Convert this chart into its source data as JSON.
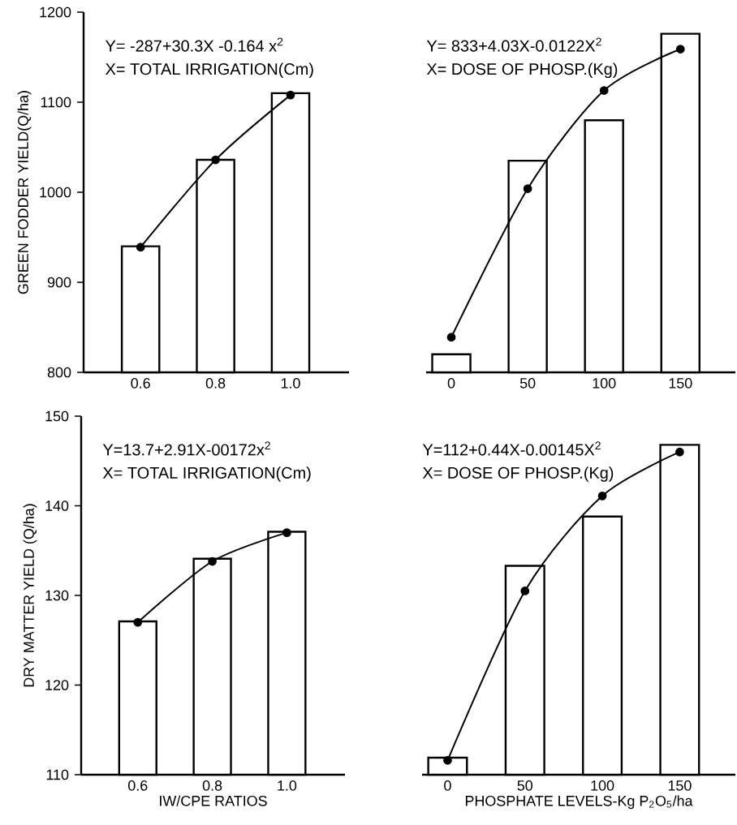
{
  "chart_data": [
    {
      "type": "bar",
      "ylabel": "GREEN FODDER YIELD(Q/ha)",
      "categories": [
        "0.6",
        "0.8",
        "1.0"
      ],
      "ylim": [
        800,
        1200
      ],
      "yticks": [
        800,
        900,
        1000,
        1100,
        1200
      ],
      "marker": "circle",
      "annotations": [
        "Y= -287+30.3X -0.164 x$^{2}$",
        "X= TOTAL IRRIGATION(Cm)"
      ],
      "series": [
        {
          "color": "#ffffff",
          "values": [
            940,
            1036,
            1110
          ]
        },
        {
          "type": "line",
          "color": "#000000",
          "values": [
            939,
            1036,
            1108
          ]
        }
      ]
    },
    {
      "type": "bar",
      "categories": [
        "0",
        "50",
        "100",
        "150"
      ],
      "ylim": [
        800,
        1200
      ],
      "tick_labels": "x",
      "marker": "circle",
      "annotations": [
        "Y= 833+4.03X-0.0122X$^{2}$",
        "X= DOSE OF PHOSP.(Kg)"
      ],
      "series": [
        {
          "color": "#ffffff",
          "values": [
            820,
            1035,
            1080,
            1176
          ]
        },
        {
          "type": "line",
          "color": "#000000",
          "values": [
            839,
            1004,
            1113,
            1159
          ]
        }
      ]
    },
    {
      "type": "bar",
      "ylabel": "DRY MATTER YIELD (Q/ha)",
      "xlabel": "IW/CPE RATIOS",
      "categories": [
        "0.6",
        "0.8",
        "1.0"
      ],
      "ylim": [
        110,
        150
      ],
      "yticks": [
        110,
        120,
        130,
        140,
        150
      ],
      "marker": "circle",
      "annotations": [
        "Y=13.7+2.91X-00172x$^{2}$",
        "X= TOTAL IRRIGATION(Cm)"
      ],
      "series": [
        {
          "color": "#ffffff",
          "values": [
            127.1,
            134.1,
            137.1
          ]
        },
        {
          "type": "line",
          "color": "#000000",
          "values": [
            127,
            133.8,
            137
          ]
        }
      ]
    },
    {
      "type": "bar",
      "xlabel": "PHOSPHATE LEVELS-Kg P$_{2}$O$_{5}$/ha",
      "categories": [
        "0",
        "50",
        "100",
        "150"
      ],
      "ylim": [
        110,
        150
      ],
      "tick_labels": "x",
      "marker": "circle",
      "annotations": [
        "Y=112+0.44X-0.00145X$^{2}$",
        "X= DOSE OF PHOSP.(Kg)"
      ],
      "series": [
        {
          "color": "#ffffff",
          "values": [
            111.9,
            133.3,
            138.8,
            146.8
          ]
        },
        {
          "type": "line",
          "color": "#000000",
          "values": [
            111.6,
            130.5,
            141.1,
            146
          ]
        }
      ]
    }
  ]
}
